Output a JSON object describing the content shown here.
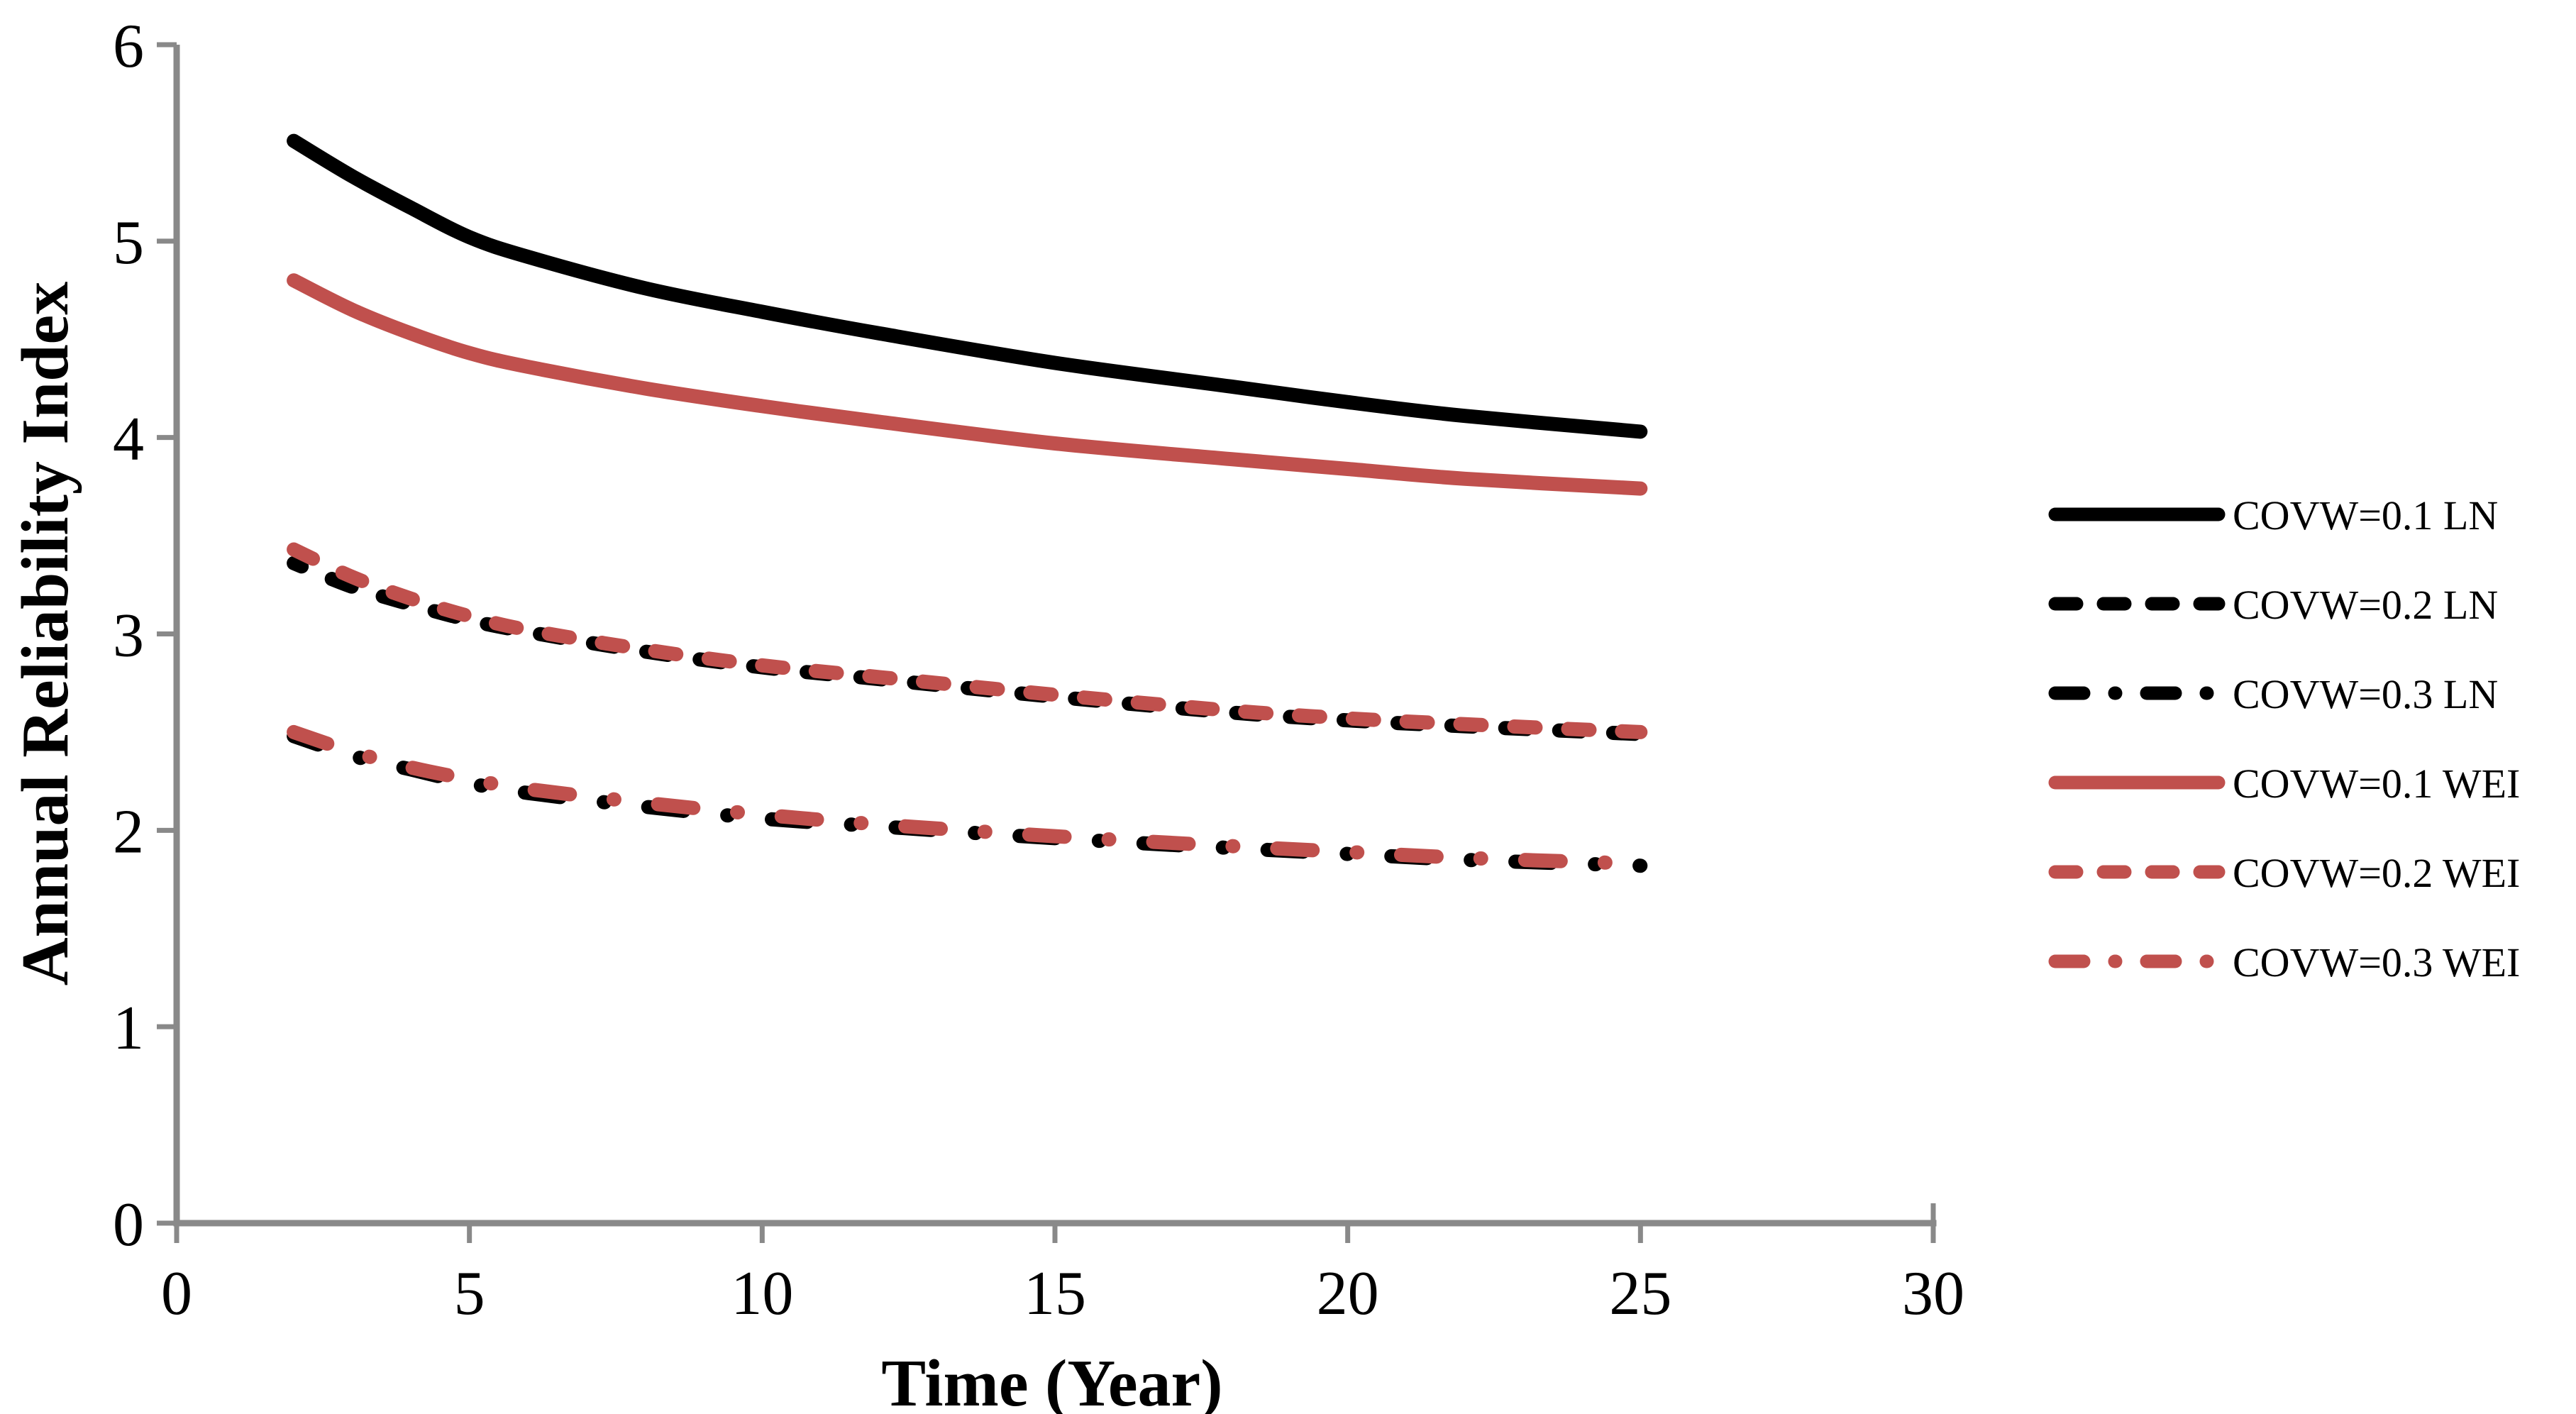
{
  "figure": {
    "background": "#ffffff",
    "axis_color": "#898989",
    "text_color": "#000000"
  },
  "chart_data": {
    "type": "line",
    "title": "",
    "xlabel": "Time (Year)",
    "ylabel": "Annual Reliability Index",
    "xlim": [
      0,
      30
    ],
    "ylim": [
      0,
      6
    ],
    "xticks": [
      0,
      5,
      10,
      15,
      20,
      25,
      30
    ],
    "yticks": [
      0,
      1,
      2,
      3,
      4,
      5,
      6
    ],
    "grid": false,
    "legend_position": "right",
    "series": [
      {
        "name": "COVW=0.1 LN",
        "color": "#000000",
        "style": "solid",
        "x": [
          2,
          3,
          4,
          5,
          6,
          8,
          10,
          12,
          15,
          18,
          20,
          22,
          25
        ],
        "y": [
          5.51,
          5.33,
          5.17,
          5.02,
          4.92,
          4.76,
          4.64,
          4.53,
          4.38,
          4.26,
          4.18,
          4.11,
          4.03
        ]
      },
      {
        "name": "COVW=0.2 LN",
        "color": "#000000",
        "style": "dash",
        "x": [
          2,
          3,
          4,
          5,
          6,
          8,
          10,
          12,
          15,
          18,
          20,
          22,
          25
        ],
        "y": [
          3.36,
          3.24,
          3.15,
          3.07,
          3.01,
          2.91,
          2.83,
          2.77,
          2.68,
          2.6,
          2.56,
          2.53,
          2.49
        ]
      },
      {
        "name": "COVW=0.3 LN",
        "color": "#000000",
        "style": "dashdot",
        "x": [
          2,
          3,
          4,
          5,
          6,
          8,
          10,
          12,
          15,
          18,
          20,
          22,
          25
        ],
        "y": [
          2.48,
          2.38,
          2.31,
          2.24,
          2.19,
          2.12,
          2.06,
          2.02,
          1.96,
          1.91,
          1.88,
          1.85,
          1.82
        ]
      },
      {
        "name": "COVW=0.1 WEI",
        "color": "#C0504D",
        "style": "solid",
        "x": [
          2,
          3,
          4,
          5,
          6,
          8,
          10,
          12,
          15,
          18,
          20,
          22,
          25
        ],
        "y": [
          4.8,
          4.65,
          4.53,
          4.43,
          4.36,
          4.25,
          4.16,
          4.08,
          3.97,
          3.89,
          3.84,
          3.79,
          3.74
        ]
      },
      {
        "name": "COVW=0.2 WEI",
        "color": "#C0504D",
        "style": "dash",
        "x": [
          2,
          3,
          4,
          5,
          6,
          8,
          10,
          12,
          15,
          18,
          20,
          22,
          25
        ],
        "y": [
          3.43,
          3.29,
          3.18,
          3.09,
          3.02,
          2.92,
          2.84,
          2.78,
          2.69,
          2.61,
          2.57,
          2.54,
          2.5
        ]
      },
      {
        "name": "COVW=0.3 WEI",
        "color": "#C0504D",
        "style": "dashdot",
        "x": [
          2,
          3,
          4,
          5,
          6,
          8,
          10,
          12,
          15,
          18,
          20,
          22,
          25
        ],
        "y": [
          2.5,
          2.4,
          2.32,
          2.26,
          2.21,
          2.14,
          2.08,
          2.03,
          1.97,
          1.92,
          1.89,
          1.86,
          1.83
        ]
      }
    ]
  }
}
